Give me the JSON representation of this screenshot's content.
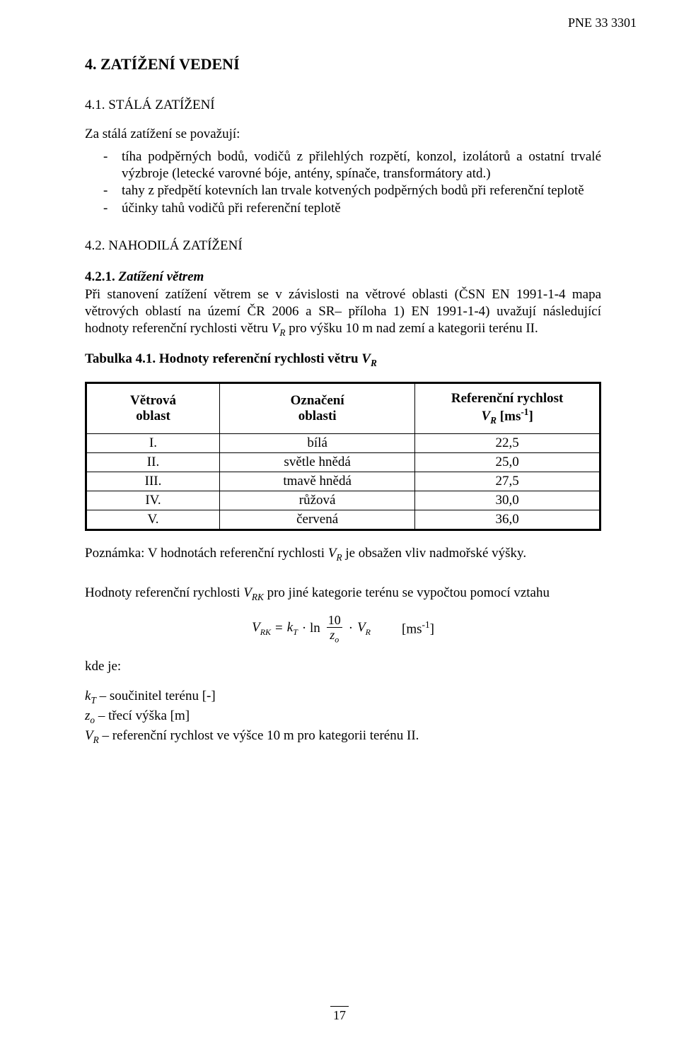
{
  "doc_id": "PNE 33 3301",
  "s4": {
    "title": "4. ZATÍŽENÍ VEDENÍ",
    "s41": {
      "title": "4.1. STÁLÁ ZATÍŽENÍ",
      "intro": "Za stálá zatížení se považují:",
      "items": [
        "tíha podpěrných bodů, vodičů z přilehlých rozpětí, konzol, izolátorů a ostatní trvalé výzbroje (letecké varovné bóje, antény, spínače, transformátory atd.)",
        "tahy z předpětí kotevních lan trvale kotvených podpěrných bodů při referenční teplotě",
        "účinky tahů vodičů při referenční teplotě"
      ]
    },
    "s42": {
      "title": "4.2. NAHODILÁ ZATÍŽENÍ",
      "s421": {
        "num": "4.2.1.",
        "title": "Zatížení větrem",
        "para": "Při stanovení zatížení větrem se v závislosti na větrové oblasti (ČSN EN 1991-1-4 mapa větrových oblastí na území ČR 2006 a SR– příloha 1) EN 1991-1-4) uvažují následující hodnoty referenční rychlosti větru VR pro výšku 10 m nad zemí a kategorii terénu II.",
        "table_caption_prefix": "Tabulka 4.1. Hodnoty referenční rychlosti větru ",
        "table": {
          "headers": {
            "area_l1": "Větrová",
            "area_l2": "oblast",
            "label_l1": "Označení",
            "label_l2": "oblasti",
            "speed_l1": "Referenční rychlost"
          },
          "rows": [
            {
              "area": "I.",
              "label": "bílá",
              "speed": "22,5"
            },
            {
              "area": "II.",
              "label": "světle hnědá",
              "speed": "25,0"
            },
            {
              "area": "III.",
              "label": "tmavě hnědá",
              "speed": "27,5"
            },
            {
              "area": "IV.",
              "label": "růžová",
              "speed": "30,0"
            },
            {
              "area": "V.",
              "label": "červená",
              "speed": "36,0"
            }
          ]
        },
        "note_prefix": "Poznámka: V hodnotách referenční rychlosti ",
        "note_suffix": " je obsažen vliv nadmořské výšky.",
        "rel_prefix": "Hodnoty referenční rychlosti ",
        "rel_suffix": " pro jiné kategorie terénu se vypočtou pomocí vztahu",
        "formula": {
          "frac_num": "10",
          "unit": "[ms⁻¹]"
        },
        "kde": "kde je:",
        "def_kt_rest": " – součinitel terénu  [-]",
        "def_zo_rest": "  – třecí výška  [m]",
        "def_vr_rest": " – referenční rychlost ve výšce 10 m pro kategorii terénu II."
      }
    }
  },
  "page_number": "17"
}
